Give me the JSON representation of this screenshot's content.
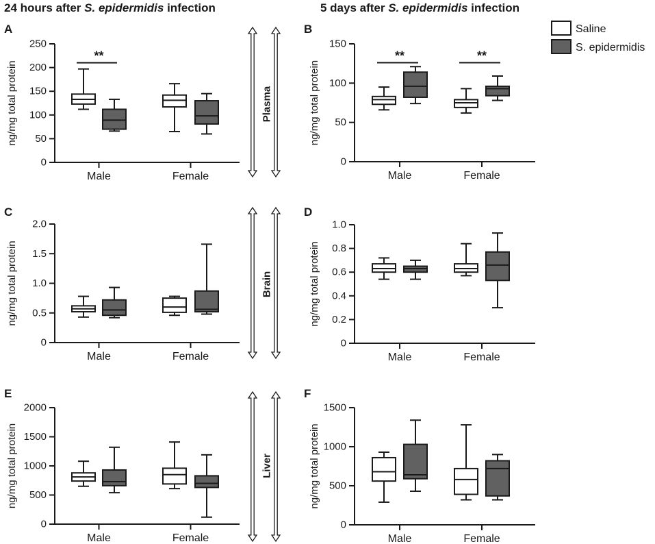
{
  "titles": {
    "left": {
      "prefix": "24 hours after ",
      "species": "S. epidermidis",
      "suffix": " infection"
    },
    "right": {
      "prefix": "5 days after ",
      "species": "S. epidermidis",
      "suffix": " infection"
    }
  },
  "legend": {
    "items": [
      {
        "label": "Saline",
        "color": "#ffffff"
      },
      {
        "label": "S. epidermidis",
        "color": "#616161"
      }
    ]
  },
  "tissues": [
    "Plasma",
    "Brain",
    "Liver"
  ],
  "colors": {
    "saline": "#ffffff",
    "infected": "#616161",
    "stroke": "#1a1a1a"
  },
  "chart_data": [
    {
      "panel": "A",
      "type": "box",
      "tissue": "Plasma",
      "timepoint": "24 hours",
      "ylabel": "ng/mg total protein",
      "ylim": [
        0,
        250
      ],
      "yticks": [
        "0",
        "50",
        "100",
        "150",
        "200",
        "250"
      ],
      "categories": [
        "Male",
        "Female"
      ],
      "series": [
        {
          "name": "Saline",
          "boxes": [
            {
              "min": 112,
              "q1": 123,
              "median": 133,
              "q3": 144,
              "max": 197
            },
            {
              "min": 65,
              "q1": 117,
              "median": 131,
              "q3": 142,
              "max": 166
            }
          ]
        },
        {
          "name": "S. epidermidis",
          "boxes": [
            {
              "min": 66,
              "q1": 70,
              "median": 89,
              "q3": 112,
              "max": 133
            },
            {
              "min": 60,
              "q1": 81,
              "median": 98,
              "q3": 130,
              "max": 145
            }
          ]
        }
      ],
      "significance": [
        {
          "category": "Male",
          "label": "**",
          "y": 210
        }
      ]
    },
    {
      "panel": "B",
      "type": "box",
      "tissue": "Plasma",
      "timepoint": "5 days",
      "ylabel": "ng/mg total protein",
      "ylim": [
        0,
        150
      ],
      "yticks": [
        "0",
        "50",
        "100",
        "150"
      ],
      "categories": [
        "Male",
        "Female"
      ],
      "series": [
        {
          "name": "Saline",
          "boxes": [
            {
              "min": 66,
              "q1": 73,
              "median": 79,
              "q3": 83,
              "max": 95
            },
            {
              "min": 62,
              "q1": 69,
              "median": 75,
              "q3": 79,
              "max": 93
            }
          ]
        },
        {
          "name": "S. epidermidis",
          "boxes": [
            {
              "min": 74,
              "q1": 82,
              "median": 96,
              "q3": 114,
              "max": 121
            },
            {
              "min": 78,
              "q1": 84,
              "median": 93,
              "q3": 96,
              "max": 109
            }
          ]
        }
      ],
      "significance": [
        {
          "category": "Male",
          "label": "**",
          "y": 126
        },
        {
          "category": "Female",
          "label": "**",
          "y": 126
        }
      ]
    },
    {
      "panel": "C",
      "type": "box",
      "tissue": "Brain",
      "timepoint": "24 hours",
      "ylabel": "ng/mg total protein",
      "ylim": [
        0,
        2.0
      ],
      "yticks": [
        "0",
        "0.5",
        "1.0",
        "1.5",
        "2.0"
      ],
      "categories": [
        "Male",
        "Female"
      ],
      "series": [
        {
          "name": "Saline",
          "boxes": [
            {
              "min": 0.43,
              "q1": 0.52,
              "median": 0.57,
              "q3": 0.62,
              "max": 0.78
            },
            {
              "min": 0.46,
              "q1": 0.51,
              "median": 0.6,
              "q3": 0.75,
              "max": 0.78
            }
          ]
        },
        {
          "name": "S. epidermidis",
          "boxes": [
            {
              "min": 0.42,
              "q1": 0.46,
              "median": 0.55,
              "q3": 0.72,
              "max": 0.93
            },
            {
              "min": 0.48,
              "q1": 0.52,
              "median": 0.56,
              "q3": 0.87,
              "max": 1.66
            }
          ]
        }
      ],
      "significance": []
    },
    {
      "panel": "D",
      "type": "box",
      "tissue": "Brain",
      "timepoint": "5 days",
      "ylabel": "ng/mg total protein",
      "ylim": [
        0,
        1.0
      ],
      "yticks": [
        "0",
        "0.2",
        "0.4",
        "0.6",
        "0.8",
        "1.0"
      ],
      "categories": [
        "Male",
        "Female"
      ],
      "series": [
        {
          "name": "Saline",
          "boxes": [
            {
              "min": 0.54,
              "q1": 0.6,
              "median": 0.63,
              "q3": 0.67,
              "max": 0.72
            },
            {
              "min": 0.57,
              "q1": 0.6,
              "median": 0.63,
              "q3": 0.67,
              "max": 0.84
            }
          ]
        },
        {
          "name": "S. epidermidis",
          "boxes": [
            {
              "min": 0.54,
              "q1": 0.6,
              "median": 0.63,
              "q3": 0.65,
              "max": 0.7
            },
            {
              "min": 0.3,
              "q1": 0.53,
              "median": 0.66,
              "q3": 0.77,
              "max": 0.93
            }
          ]
        }
      ],
      "significance": []
    },
    {
      "panel": "E",
      "type": "box",
      "tissue": "Liver",
      "timepoint": "24 hours",
      "ylabel": "ng/mg total protein",
      "ylim": [
        0,
        2000
      ],
      "yticks": [
        "0",
        "500",
        "1000",
        "1500",
        "2000"
      ],
      "categories": [
        "Male",
        "Female"
      ],
      "series": [
        {
          "name": "Saline",
          "boxes": [
            {
              "min": 650,
              "q1": 740,
              "median": 810,
              "q3": 880,
              "max": 1080
            },
            {
              "min": 610,
              "q1": 690,
              "median": 850,
              "q3": 960,
              "max": 1410
            }
          ]
        },
        {
          "name": "S. epidermidis",
          "boxes": [
            {
              "min": 540,
              "q1": 660,
              "median": 730,
              "q3": 930,
              "max": 1320
            },
            {
              "min": 120,
              "q1": 630,
              "median": 700,
              "q3": 830,
              "max": 1190
            }
          ]
        }
      ],
      "significance": []
    },
    {
      "panel": "F",
      "type": "box",
      "tissue": "Liver",
      "timepoint": "5 days",
      "ylabel": "ng/mg total protein",
      "ylim": [
        0,
        1500
      ],
      "yticks": [
        "0",
        "500",
        "1000",
        "1500"
      ],
      "categories": [
        "Male",
        "Female"
      ],
      "series": [
        {
          "name": "Saline",
          "boxes": [
            {
              "min": 290,
              "q1": 560,
              "median": 680,
              "q3": 860,
              "max": 930
            },
            {
              "min": 320,
              "q1": 390,
              "median": 580,
              "q3": 720,
              "max": 1280
            }
          ]
        },
        {
          "name": "S. epidermidis",
          "boxes": [
            {
              "min": 430,
              "q1": 590,
              "median": 640,
              "q3": 1030,
              "max": 1340
            },
            {
              "min": 320,
              "q1": 370,
              "median": 720,
              "q3": 820,
              "max": 900
            }
          ]
        }
      ],
      "significance": []
    }
  ]
}
